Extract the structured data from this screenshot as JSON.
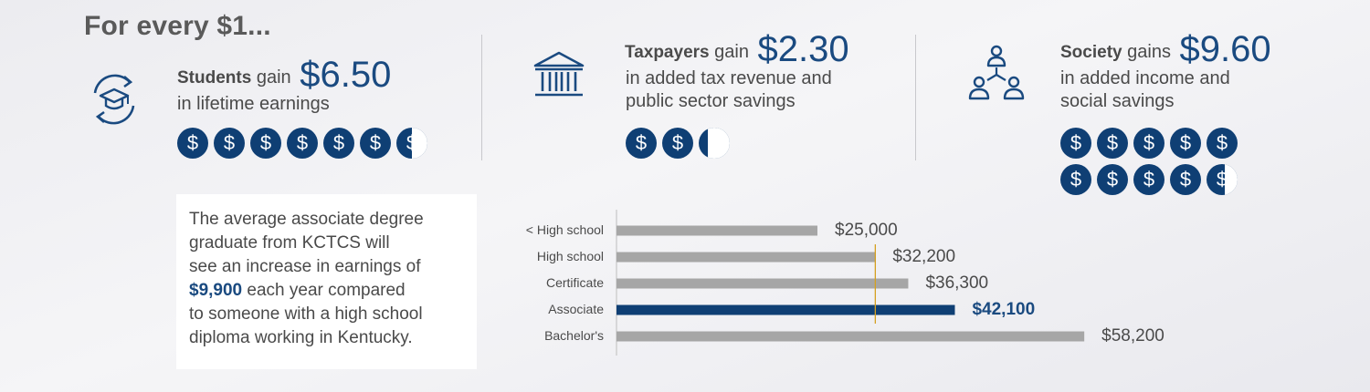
{
  "heading": "For every $1...",
  "groups": [
    {
      "who": "Students",
      "verb": "gain",
      "amount": "$6.50",
      "desc": [
        "in lifetime earnings"
      ],
      "icon": "graduation-cap-cycle-icon",
      "coin_value": 6.5
    },
    {
      "who": "Taxpayers",
      "verb": "gain",
      "amount": "$2.30",
      "desc": [
        "in added tax revenue and",
        "public sector savings"
      ],
      "icon": "bank-building-icon",
      "coin_value": 2.3
    },
    {
      "who": "Society",
      "verb": "gains",
      "amount": "$9.60",
      "desc": [
        "in added income and",
        "social savings"
      ],
      "icon": "people-network-icon",
      "coin_value": 9.6
    }
  ],
  "coin_symbol": "$",
  "callout": {
    "line1": "The average associate degree",
    "line2": "graduate from KCTCS will",
    "line3": "see an increase in earnings of",
    "highlight": "$9,900",
    "line4_rest": " each year compared",
    "line5": "to someone with a high school",
    "line6": "diploma working in Kentucky."
  },
  "colors": {
    "accent": "#0f3f74",
    "bar_default": "#a6a6a6",
    "bar_highlight": "#0f3f74",
    "reference_line": "#d4a020"
  },
  "chart_data": {
    "type": "bar",
    "orientation": "horizontal",
    "categories": [
      "< High school",
      "High school",
      "Certificate",
      "Associate",
      "Bachelor's"
    ],
    "values": [
      25000,
      32200,
      36300,
      42100,
      58200
    ],
    "value_labels": [
      "$25,000",
      "$32,200",
      "$36,300",
      "$42,100",
      "$58,200"
    ],
    "highlight_category": "Associate",
    "reference_value": 32200,
    "xlim": [
      0,
      60000
    ]
  }
}
